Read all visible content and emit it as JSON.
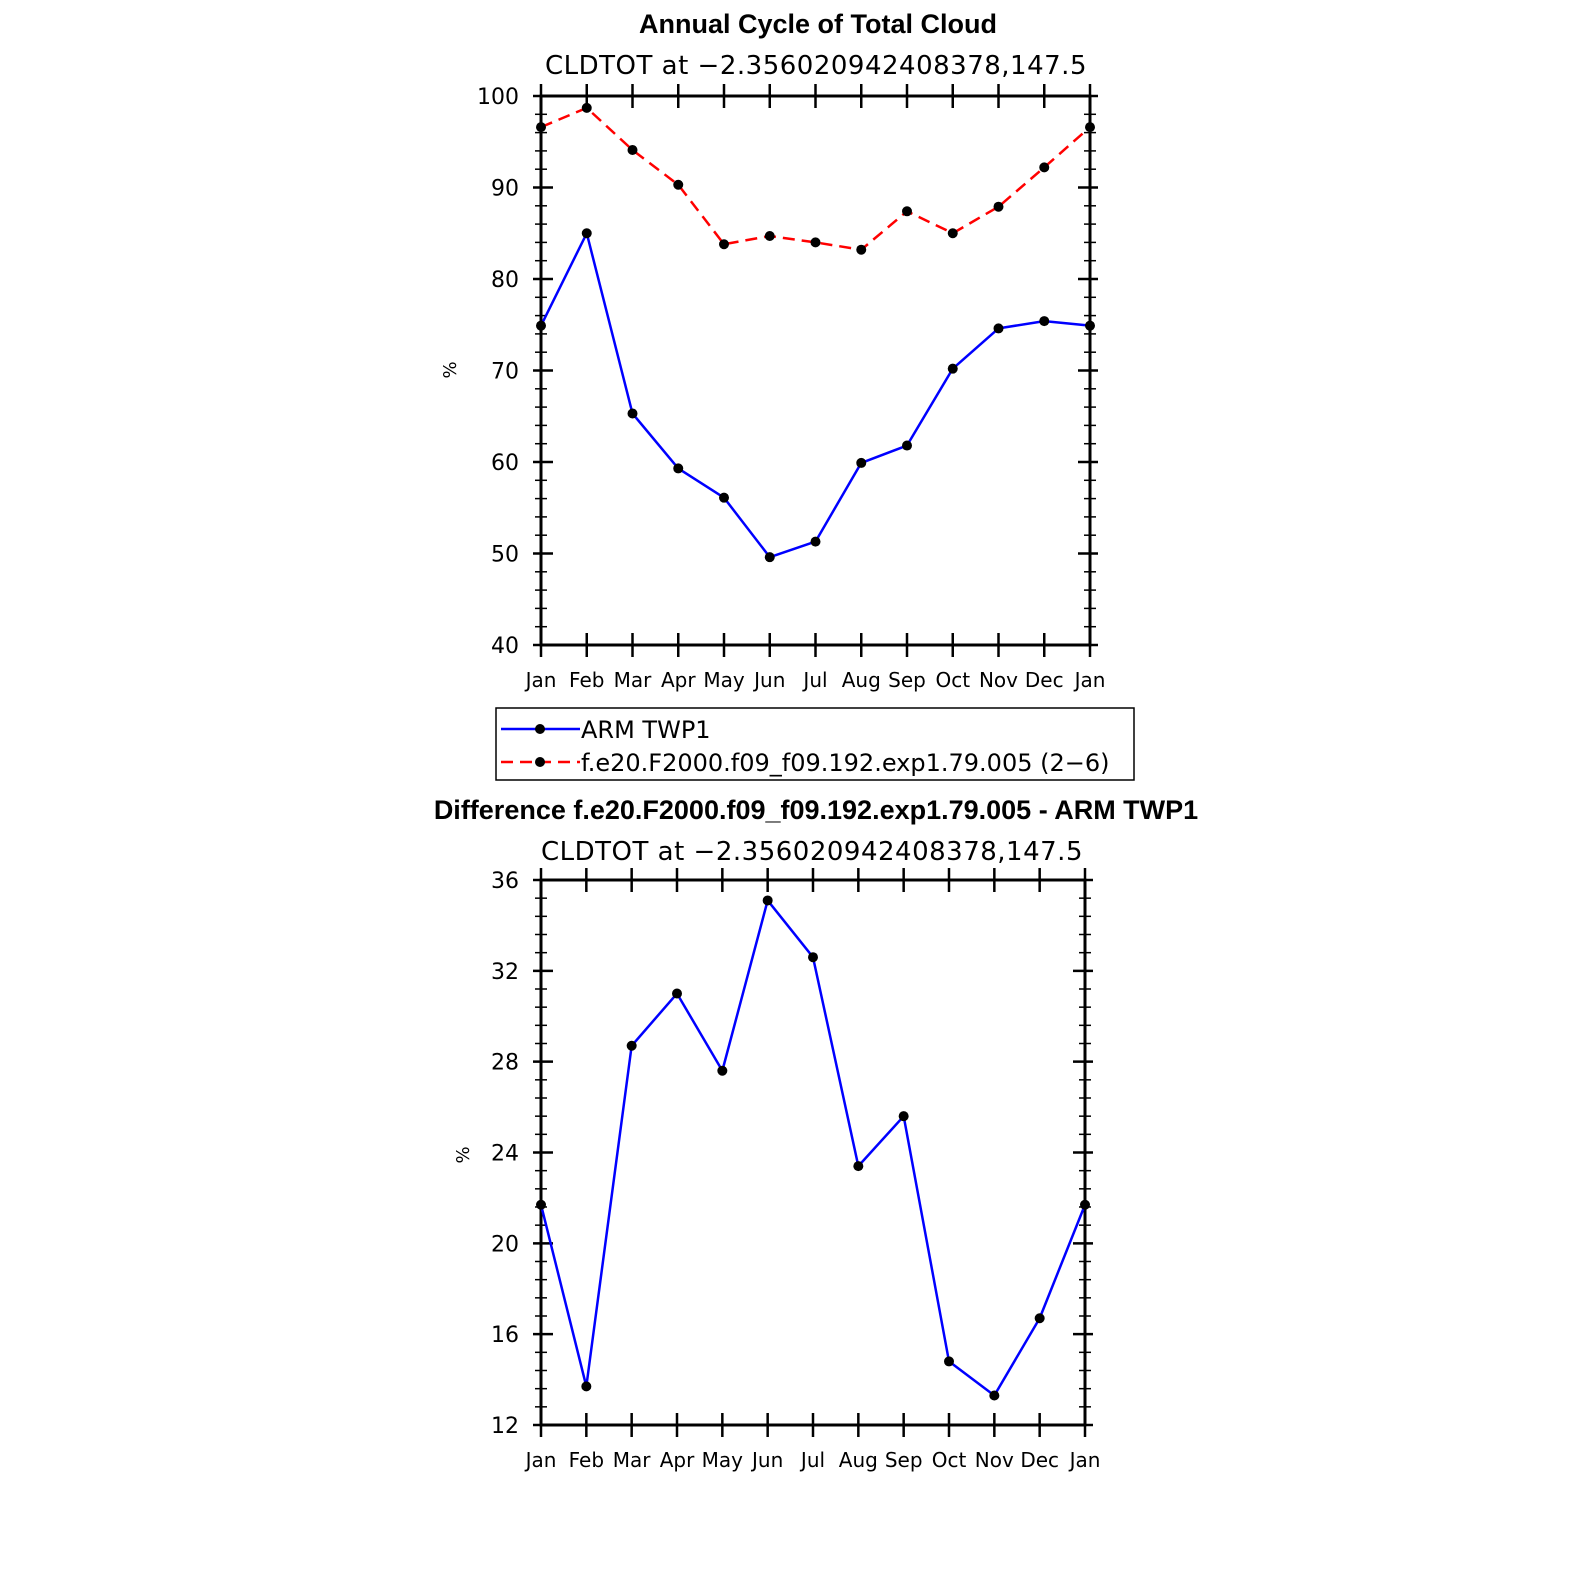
{
  "chart_data": [
    {
      "type": "line",
      "title": "Annual Cycle of Total Cloud",
      "subtitle": "CLDTOT at −2.356020942408378,147.5",
      "ylabel": "%",
      "xlabel": "",
      "ylim": [
        40,
        100
      ],
      "yticks": [
        "40",
        "50",
        "60",
        "70",
        "80",
        "90",
        "100"
      ],
      "categories": [
        "Jan",
        "Feb",
        "Mar",
        "Apr",
        "May",
        "Jun",
        "Jul",
        "Aug",
        "Sep",
        "Oct",
        "Nov",
        "Dec",
        "Jan"
      ],
      "series": [
        {
          "name": "ARM TWP1",
          "color": "#0000ff",
          "style": "solid",
          "values": [
            74.9,
            85.0,
            65.3,
            59.3,
            56.1,
            49.6,
            51.3,
            59.9,
            61.8,
            70.2,
            74.6,
            75.4,
            74.9
          ]
        },
        {
          "name": "f.e20.F2000.f09_f09.192.exp1.79.005 (2−6)",
          "color": "#ff0000",
          "style": "dashed",
          "values": [
            96.6,
            98.7,
            94.1,
            90.3,
            83.8,
            84.7,
            84.0,
            83.2,
            87.4,
            85.0,
            87.9,
            92.2,
            96.6
          ]
        }
      ],
      "legend": "below"
    },
    {
      "type": "line",
      "title": "Difference f.e20.F2000.f09_f09.192.exp1.79.005 - ARM TWP1",
      "subtitle": "CLDTOT at −2.356020942408378,147.5",
      "ylabel": "%",
      "xlabel": "",
      "ylim": [
        12,
        36
      ],
      "yticks": [
        "12",
        "16",
        "20",
        "24",
        "28",
        "32",
        "36"
      ],
      "categories": [
        "Jan",
        "Feb",
        "Mar",
        "Apr",
        "May",
        "Jun",
        "Jul",
        "Aug",
        "Sep",
        "Oct",
        "Nov",
        "Dec",
        "Jan"
      ],
      "series": [
        {
          "color": "#0000ff",
          "style": "solid",
          "values": [
            21.7,
            13.7,
            28.7,
            31.0,
            27.6,
            35.1,
            32.6,
            23.4,
            25.6,
            14.8,
            13.3,
            16.7,
            21.7
          ]
        }
      ]
    }
  ]
}
